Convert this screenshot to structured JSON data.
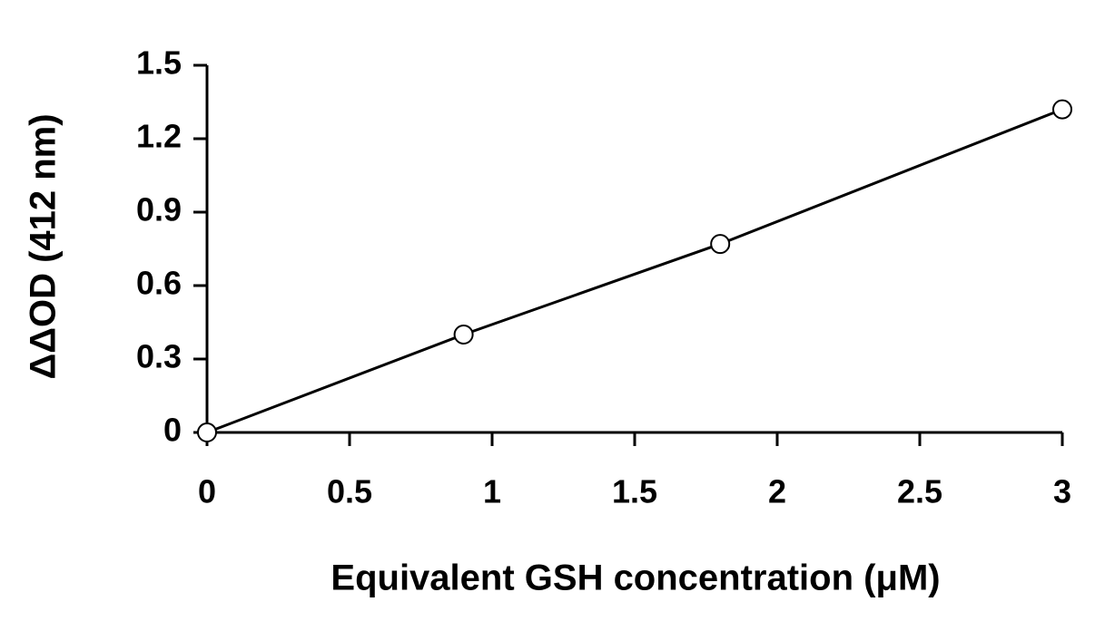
{
  "chart_data": {
    "type": "line",
    "x_label": "Equivalent GSH concentration (μM)",
    "y_label": "ΔΔOD (412 nm)",
    "x": [
      0,
      0.9,
      1.8,
      3
    ],
    "series": [
      {
        "color": "#000000",
        "values": [
          0,
          0.4,
          0.77,
          1.32
        ]
      }
    ],
    "xlim": [
      0,
      3
    ],
    "xticks": [
      0,
      0.5,
      1,
      1.5,
      2,
      2.5,
      3
    ],
    "ylim": [
      0,
      1.5
    ],
    "yticks": [
      0,
      0.3,
      0.6,
      0.9,
      1.2,
      1.5
    ],
    "grid": false
  }
}
